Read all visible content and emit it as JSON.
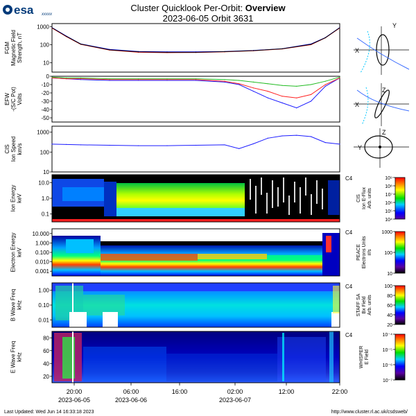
{
  "header": {
    "logo_text": "esa",
    "logo_sub": "xxxxx",
    "title_plain": "Cluster Quicklook Per-Orbit: ",
    "title_bold": "Overview",
    "subtitle": "2023-06-05 Orbit 3631"
  },
  "footer": {
    "updated": "Last Updated:  Wed Jun 14 16:33:18 2023",
    "url": "http://www.cluster.rl.ac.uk/csdsweb/"
  },
  "colors": {
    "series_blue": "#1a1aff",
    "series_red": "#ff2020",
    "series_green": "#22bb22",
    "series_black": "#000000",
    "orbit_blue": "#3a6cff",
    "orbit_cyan": "#00c8ff"
  },
  "time_axis": {
    "tick_labels": [
      "20:00",
      "06:00",
      "16:00",
      "02:00",
      "12:00",
      "22:00"
    ],
    "date_labels": [
      "2023-06-05",
      "2023-06-06",
      "2023-06-07"
    ]
  },
  "orbit_plots": {
    "labels": [
      "Y",
      "X",
      "Z",
      "X",
      "Z",
      "Y"
    ]
  },
  "chart_data": [
    {
      "type": "line",
      "panel": "fgm",
      "ylabel_lines": [
        "FGM",
        "Magnetic Field",
        "Strength, nT"
      ],
      "y_scale": "log",
      "ylim": [
        3,
        1500
      ],
      "tick_labels": [
        "1000",
        "100",
        "10"
      ],
      "tick_values": [
        1000,
        100,
        10
      ],
      "x_norm": [
        0,
        0.05,
        0.1,
        0.2,
        0.3,
        0.4,
        0.5,
        0.6,
        0.7,
        0.8,
        0.9,
        0.95,
        1
      ],
      "series": [
        {
          "color": "#1a1aff",
          "values": [
            900,
            300,
            110,
            55,
            42,
            40,
            40,
            42,
            48,
            60,
            110,
            250,
            900
          ]
        },
        {
          "color": "#ff2020",
          "values": [
            850,
            280,
            105,
            50,
            38,
            36,
            37,
            40,
            46,
            58,
            100,
            240,
            850
          ]
        },
        {
          "color": "#000000",
          "values": [
            880,
            290,
            108,
            52,
            40,
            38,
            38,
            41,
            47,
            59,
            105,
            245,
            880
          ]
        }
      ]
    },
    {
      "type": "line",
      "panel": "efw",
      "ylabel_lines": [
        "EFW",
        "-(S/C Pot)",
        "Volts"
      ],
      "y_scale": "linear",
      "ylim": [
        -55,
        0
      ],
      "tick_labels": [
        "0",
        "-10",
        "-20",
        "-30",
        "-40",
        "-50"
      ],
      "tick_values": [
        0,
        -10,
        -20,
        -30,
        -40,
        -50
      ],
      "x_norm": [
        0,
        0.05,
        0.1,
        0.2,
        0.3,
        0.4,
        0.5,
        0.6,
        0.65,
        0.7,
        0.75,
        0.8,
        0.85,
        0.9,
        0.95,
        1
      ],
      "series": [
        {
          "color": "#1a1aff",
          "values": [
            -2,
            -3,
            -4,
            -5,
            -5,
            -5,
            -5,
            -7,
            -10,
            -18,
            -26,
            -32,
            -38,
            -30,
            -12,
            -2
          ]
        },
        {
          "color": "#ff2020",
          "values": [
            -2,
            -3,
            -3,
            -4,
            -4,
            -4,
            -4,
            -6,
            -9,
            -14,
            -18,
            -24,
            -26,
            -22,
            -10,
            -2
          ]
        },
        {
          "color": "#22bb22",
          "values": [
            -1,
            -2,
            -2,
            -3,
            -3,
            -3,
            -3,
            -4,
            -5,
            -7,
            -9,
            -11,
            -12,
            -10,
            -6,
            -1
          ]
        }
      ]
    },
    {
      "type": "line",
      "panel": "cis",
      "ylabel_lines": [
        "CIS",
        "Ion Speed",
        "km/s"
      ],
      "y_scale": "log",
      "ylim": [
        10,
        2000
      ],
      "tick_labels": [
        "1000",
        "100",
        "10"
      ],
      "tick_values": [
        1000,
        100,
        10
      ],
      "x_norm": [
        0,
        0.05,
        0.1,
        0.2,
        0.3,
        0.4,
        0.5,
        0.6,
        0.65,
        0.7,
        0.75,
        0.8,
        0.85,
        0.9,
        0.95,
        1
      ],
      "series": [
        {
          "color": "#1a1aff",
          "values": [
            250,
            240,
            230,
            220,
            210,
            210,
            220,
            230,
            150,
            260,
            500,
            650,
            700,
            600,
            300,
            250
          ]
        }
      ]
    },
    {
      "type": "heatmap",
      "panel": "cis-energy",
      "ylabel_lines": [
        "Ion Energy",
        "keV"
      ],
      "tick_labels": [
        "10.0",
        "1.0",
        "0.1"
      ],
      "sc_label": "C4",
      "cbar_title_lines": [
        "CIS",
        "Ion E-Flux",
        "Arb. units"
      ],
      "cbar_tick_labels": [
        "10⁹",
        "10⁸",
        "10⁷",
        "10⁶",
        "10⁵",
        "10⁴"
      ]
    },
    {
      "type": "heatmap",
      "panel": "peace",
      "ylabel_lines": [
        "Electron Energy",
        "keV"
      ],
      "tick_labels": [
        "10.000",
        "1.000",
        "0.100",
        "0.010",
        "0.001"
      ],
      "sc_label": "C4",
      "cbar_title_lines": [
        "PEACE",
        "Electrons Units",
        "#/s"
      ],
      "cbar_tick_labels": [
        "1000",
        "100",
        "10"
      ]
    },
    {
      "type": "heatmap",
      "panel": "staff",
      "ylabel_lines": [
        "B Wave Freq",
        "kHz"
      ],
      "tick_labels": [
        "1.00",
        "0.10",
        "0.01"
      ],
      "sc_label": "C4",
      "cbar_title_lines": [
        "STAFF SA",
        "Bx Field",
        "Arb. units"
      ],
      "cbar_tick_labels": [
        "100",
        "80",
        "60",
        "40",
        "20"
      ]
    },
    {
      "type": "heatmap",
      "panel": "whisper",
      "ylabel_lines": [
        "E Wave Freq",
        "kHz"
      ],
      "tick_labels": [
        "80",
        "60",
        "40",
        "20"
      ],
      "sc_label": "C4",
      "cbar_title_lines": [
        "WHISPER",
        "E Field"
      ],
      "cbar_tick_labels": [
        "10⁻⁴",
        "10⁻⁵",
        "10⁻⁶",
        "10⁻⁷"
      ]
    }
  ]
}
